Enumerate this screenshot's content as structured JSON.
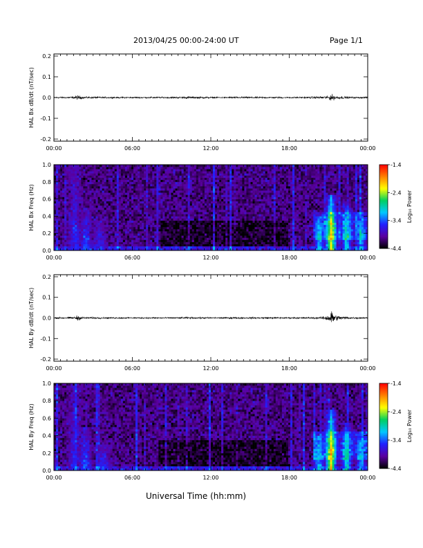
{
  "header": {
    "title": "2013/04/25  00:00-24:00 UT",
    "page": "Page 1/1"
  },
  "xaxis_label": "Universal Time (hh:mm)",
  "colorbar": {
    "label": "Log₁₀ Power",
    "ticks": [
      "-1.4",
      "-2.4",
      "-3.4",
      "-4.4"
    ],
    "range": [
      -4.4,
      -1.4
    ],
    "colors": [
      "#000000",
      "#5a00a0",
      "#2020ff",
      "#00c8ff",
      "#00d060",
      "#ffff00",
      "#ff8000",
      "#ff0000"
    ]
  },
  "chart_data": [
    {
      "type": "line",
      "ylabel": "HAL Bx dB/dt (nT/sec)",
      "xlim": [
        0,
        24
      ],
      "ylim": [
        -0.21,
        0.21
      ],
      "xticks": [
        "00:00",
        "06:00",
        "12:00",
        "18:00",
        "00:00"
      ],
      "yticks": [
        "0.2",
        "0.1",
        "0.0",
        "-0.1",
        "-0.2"
      ],
      "series_color": "#000000",
      "envelope": {
        "x": [
          0,
          1.5,
          1.8,
          2.2,
          4,
          8,
          11,
          12,
          15,
          18,
          19.5,
          21,
          21.2,
          21.6,
          22.5,
          24
        ],
        "amp": [
          0.004,
          0.006,
          0.013,
          0.006,
          0.004,
          0.004,
          0.006,
          0.004,
          0.005,
          0.004,
          0.005,
          0.009,
          0.02,
          0.01,
          0.005,
          0.004
        ]
      }
    },
    {
      "type": "heatmap",
      "ylabel": "HAL Bx Freq (Hz)",
      "xlim": [
        0,
        24
      ],
      "ylim": [
        0,
        1.0
      ],
      "xticks": [
        "00:00",
        "06:00",
        "12:00",
        "18:00",
        "00:00"
      ],
      "yticks": [
        "1.0",
        "0.8",
        "0.6",
        "0.4",
        "0.2",
        "0.0"
      ],
      "features": [
        {
          "t": 1.6,
          "f_max": 1.0,
          "level": -3.5
        },
        {
          "t": 2.4,
          "f_max": 0.5,
          "level": -3.3
        },
        {
          "t": 3.5,
          "f_max": 0.35,
          "level": -3.4
        },
        {
          "t": 12.5,
          "f_max": 0.06,
          "level": -3.5
        },
        {
          "t": 20.3,
          "f_max": 0.4,
          "level": -2.9
        },
        {
          "t": 21.2,
          "f_max": 0.65,
          "level": -2.0
        },
        {
          "t": 22.4,
          "f_max": 0.55,
          "level": -2.8
        },
        {
          "t": 23.5,
          "f_max": 0.45,
          "level": -3.0
        }
      ]
    },
    {
      "type": "line",
      "ylabel": "HAL By dB/dt (nT/sec)",
      "xlim": [
        0,
        24
      ],
      "ylim": [
        -0.21,
        0.21
      ],
      "xticks": [
        "00:00",
        "06:00",
        "12:00",
        "18:00",
        "00:00"
      ],
      "yticks": [
        "0.2",
        "0.1",
        "0.0",
        "-0.1",
        "-0.2"
      ],
      "series_color": "#000000",
      "envelope": {
        "x": [
          0,
          1.5,
          1.8,
          2.2,
          4,
          8,
          11,
          12,
          15,
          18,
          20.5,
          21,
          21.2,
          21.6,
          22.5,
          24
        ],
        "amp": [
          0.004,
          0.006,
          0.015,
          0.006,
          0.004,
          0.004,
          0.005,
          0.004,
          0.005,
          0.004,
          0.006,
          0.02,
          0.045,
          0.015,
          0.006,
          0.004
        ]
      }
    },
    {
      "type": "heatmap",
      "ylabel": "HAL By Freq (Hz)",
      "xlim": [
        0,
        24
      ],
      "ylim": [
        0,
        1.0
      ],
      "xticks": [
        "00:00",
        "06:00",
        "12:00",
        "18:00",
        "00:00"
      ],
      "yticks": [
        "1.0",
        "0.8",
        "0.6",
        "0.4",
        "0.2",
        "0.0"
      ],
      "features": [
        {
          "t": 1.6,
          "f_max": 1.0,
          "level": -3.5
        },
        {
          "t": 2.4,
          "f_max": 0.5,
          "level": -3.3
        },
        {
          "t": 3.8,
          "f_max": 0.3,
          "level": -3.4
        },
        {
          "t": 12.5,
          "f_max": 0.06,
          "level": -3.5
        },
        {
          "t": 20.3,
          "f_max": 0.4,
          "level": -2.9
        },
        {
          "t": 21.2,
          "f_max": 0.7,
          "level": -2.0
        },
        {
          "t": 22.4,
          "f_max": 0.55,
          "level": -2.8
        },
        {
          "t": 23.5,
          "f_max": 0.45,
          "level": -3.0
        }
      ]
    }
  ]
}
